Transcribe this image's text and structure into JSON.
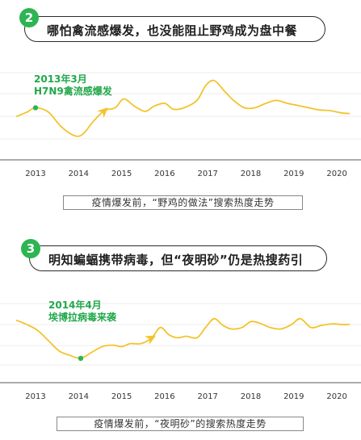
{
  "colors": {
    "green": "#2db553",
    "line": "#f3c32c",
    "annotation": "#21a84a",
    "axis": "#7a7a7a",
    "grid": "#ececec"
  },
  "sections": [
    {
      "number": "2",
      "title": "哪怕禽流感爆发，也没能阻止野鸡成为盘中餐",
      "caption": "疫情爆发前，“野鸡的做法”搜索热度走势",
      "annotation": [
        "2013年3月",
        "H7N9禽流感爆发"
      ]
    },
    {
      "number": "3",
      "title": "明知蝙蝠携带病毒，但“夜明砂”仍是热搜药引",
      "caption": "疫情爆发前，“夜明砂”的搜索热度走势",
      "annotation": [
        "2014年4月",
        "埃博拉病毒来袭"
      ]
    }
  ],
  "chart_data": [
    {
      "type": "line",
      "title": "疫情爆发前，“野鸡的做法”搜索热度走势",
      "categories": [
        "2013",
        "2014",
        "2015",
        "2016",
        "2017",
        "2018",
        "2019",
        "2020"
      ],
      "x": [
        2012.55,
        2012.8,
        2013.0,
        2013.3,
        2013.6,
        2013.9,
        2014.1,
        2014.35,
        2014.6,
        2014.85,
        2015.05,
        2015.3,
        2015.55,
        2015.75,
        2016.0,
        2016.2,
        2016.45,
        2016.75,
        2016.95,
        2017.15,
        2017.4,
        2017.6,
        2017.85,
        2018.1,
        2018.35,
        2018.6,
        2018.85,
        2019.1,
        2019.35,
        2019.6,
        2019.85,
        2020.1,
        2020.3
      ],
      "y": [
        48,
        54,
        60,
        54,
        34,
        22,
        24,
        42,
        56,
        60,
        72,
        62,
        55,
        62,
        66,
        58,
        60,
        70,
        90,
        97,
        82,
        70,
        60,
        60,
        66,
        70,
        66,
        63,
        60,
        57,
        56,
        53,
        52
      ],
      "series": [
        {
          "name": "",
          "type": "line"
        }
      ],
      "ylim": [
        0,
        110
      ],
      "grid": true,
      "annotations": [
        {
          "x": 2013.0,
          "y": 60,
          "text": [
            "2013年3月",
            "H7N9禽流感爆发"
          ],
          "marker": "dot"
        },
        {
          "x": 2014.5,
          "arrow": true
        }
      ]
    },
    {
      "type": "line",
      "title": "疫情爆发前，“夜明砂”的搜索热度走势",
      "categories": [
        "2013",
        "2014",
        "2015",
        "2016",
        "2017",
        "2018",
        "2019",
        "2020"
      ],
      "x": [
        2012.55,
        2012.8,
        2013.05,
        2013.3,
        2013.55,
        2013.8,
        2014.05,
        2014.3,
        2014.55,
        2014.8,
        2015.0,
        2015.2,
        2015.45,
        2015.7,
        2015.9,
        2016.1,
        2016.3,
        2016.5,
        2016.75,
        2016.95,
        2017.15,
        2017.35,
        2017.55,
        2017.8,
        2018.0,
        2018.2,
        2018.45,
        2018.7,
        2018.95,
        2019.15,
        2019.4,
        2019.65,
        2019.9,
        2020.1,
        2020.3
      ],
      "y": [
        72,
        66,
        58,
        44,
        30,
        24,
        20,
        28,
        36,
        38,
        36,
        40,
        40,
        48,
        62,
        52,
        48,
        50,
        48,
        62,
        74,
        65,
        60,
        62,
        70,
        68,
        62,
        60,
        66,
        74,
        62,
        65,
        67,
        66,
        66
      ],
      "series": [
        {
          "name": "",
          "type": "line"
        }
      ],
      "ylim": [
        0,
        110
      ],
      "grid": true,
      "annotations": [
        {
          "x": 2014.05,
          "y": 20,
          "text": [
            "2014年4月",
            "埃博拉病毒来袭"
          ],
          "marker": "dot"
        },
        {
          "x": 2015.7,
          "arrow": true
        }
      ]
    }
  ]
}
